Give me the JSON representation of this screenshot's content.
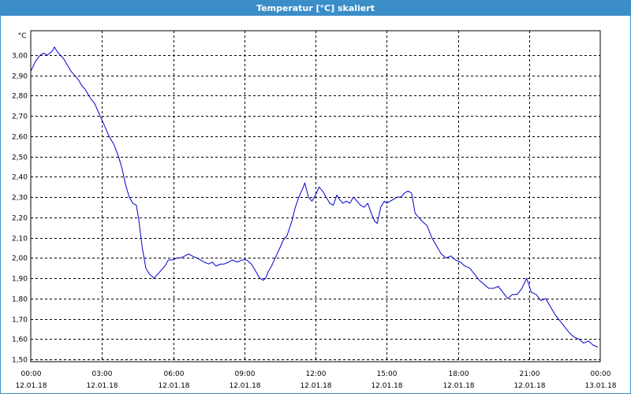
{
  "window": {
    "title": "Temperatur [°C] skaliert"
  },
  "chart_data": {
    "type": "line",
    "title": "Temperatur [°C] skaliert",
    "ylabel": "°C",
    "xlabel": "",
    "ylim": [
      1.5,
      3.1
    ],
    "grid": true,
    "y_ticks": [
      "1,50",
      "1,60",
      "1,70",
      "1,80",
      "1,90",
      "2,00",
      "2,10",
      "2,20",
      "2,30",
      "2,40",
      "2,50",
      "2,60",
      "2,70",
      "2,80",
      "2,90",
      "3,00"
    ],
    "x_ticks": [
      {
        "time": "00:00",
        "date": "12.01.18"
      },
      {
        "time": "03:00",
        "date": "12.01.18"
      },
      {
        "time": "06:00",
        "date": "12.01.18"
      },
      {
        "time": "09:00",
        "date": "12.01.18"
      },
      {
        "time": "12:00",
        "date": "12.01.18"
      },
      {
        "time": "15:00",
        "date": "12.01.18"
      },
      {
        "time": "18:00",
        "date": "12.01.18"
      },
      {
        "time": "21:00",
        "date": "12.01.18"
      },
      {
        "time": "00:00",
        "date": "13.01.18"
      }
    ],
    "xlim_hours": [
      0,
      24
    ],
    "series": [
      {
        "color": "#0000cc",
        "x_hours": [
          0.0,
          0.2,
          0.4,
          0.55,
          0.7,
          0.9,
          1.0,
          1.1,
          1.25,
          1.4,
          1.55,
          1.7,
          1.85,
          2.0,
          2.15,
          2.3,
          2.5,
          2.7,
          2.85,
          3.0,
          3.15,
          3.3,
          3.5,
          3.7,
          3.85,
          4.0,
          4.15,
          4.3,
          4.45,
          4.55,
          4.7,
          4.85,
          5.0,
          5.1,
          5.2,
          5.35,
          5.5,
          5.65,
          5.8,
          6.0,
          6.15,
          6.3,
          6.5,
          6.65,
          6.8,
          7.0,
          7.15,
          7.3,
          7.5,
          7.65,
          7.8,
          8.0,
          8.15,
          8.35,
          8.5,
          8.7,
          8.9,
          9.1,
          9.3,
          9.5,
          9.65,
          9.8,
          9.9,
          10.0,
          10.15,
          10.3,
          10.5,
          10.65,
          10.8,
          11.0,
          11.15,
          11.3,
          11.45,
          11.55,
          11.7,
          11.85,
          12.0,
          12.15,
          12.3,
          12.45,
          12.6,
          12.75,
          12.9,
          13.0,
          13.15,
          13.3,
          13.45,
          13.6,
          13.75,
          13.9,
          14.05,
          14.2,
          14.35,
          14.5,
          14.6,
          14.75,
          14.9,
          15.0,
          15.15,
          15.3,
          15.45,
          15.6,
          15.75,
          15.9,
          16.05,
          16.2,
          16.35,
          16.5,
          16.7,
          16.9,
          17.1,
          17.3,
          17.5,
          17.7,
          17.9,
          18.1,
          18.3,
          18.5,
          18.7,
          18.9,
          19.1,
          19.3,
          19.5,
          19.7,
          19.9,
          20.1,
          20.3,
          20.5,
          20.7,
          20.9,
          21.1,
          21.3,
          21.5,
          21.7,
          21.9,
          22.1,
          22.3,
          22.5,
          22.7,
          22.9,
          23.1,
          23.3,
          23.5,
          23.7,
          23.9
        ],
        "values": [
          2.92,
          2.97,
          3.0,
          3.01,
          3.0,
          3.02,
          3.04,
          3.02,
          3.0,
          2.98,
          2.95,
          2.92,
          2.9,
          2.88,
          2.85,
          2.83,
          2.79,
          2.76,
          2.72,
          2.68,
          2.64,
          2.6,
          2.56,
          2.5,
          2.44,
          2.36,
          2.3,
          2.27,
          2.26,
          2.19,
          2.05,
          1.95,
          1.92,
          1.91,
          1.9,
          1.92,
          1.94,
          1.96,
          1.99,
          1.99,
          2.0,
          2.0,
          2.01,
          2.02,
          2.01,
          2.0,
          1.99,
          1.98,
          1.97,
          1.98,
          1.96,
          1.97,
          1.97,
          1.98,
          1.99,
          1.98,
          1.99,
          1.99,
          1.97,
          1.93,
          1.9,
          1.89,
          1.9,
          1.93,
          1.96,
          2.0,
          2.05,
          2.09,
          2.11,
          2.18,
          2.25,
          2.3,
          2.34,
          2.37,
          2.3,
          2.28,
          2.31,
          2.35,
          2.33,
          2.3,
          2.27,
          2.26,
          2.31,
          2.29,
          2.27,
          2.28,
          2.27,
          2.3,
          2.28,
          2.26,
          2.25,
          2.27,
          2.22,
          2.18,
          2.17,
          2.25,
          2.28,
          2.27,
          2.28,
          2.29,
          2.3,
          2.3,
          2.32,
          2.33,
          2.32,
          2.22,
          2.2,
          2.18,
          2.16,
          2.1,
          2.06,
          2.02,
          2.0,
          2.01,
          1.99,
          1.98,
          1.96,
          1.95,
          1.92,
          1.89,
          1.87,
          1.85,
          1.85,
          1.86,
          1.83,
          1.8,
          1.82,
          1.82,
          1.85,
          1.9,
          1.83,
          1.82,
          1.79,
          1.8,
          1.76,
          1.72,
          1.69,
          1.66,
          1.63,
          1.61,
          1.6,
          1.58,
          1.59,
          1.57,
          1.56
        ]
      }
    ]
  }
}
